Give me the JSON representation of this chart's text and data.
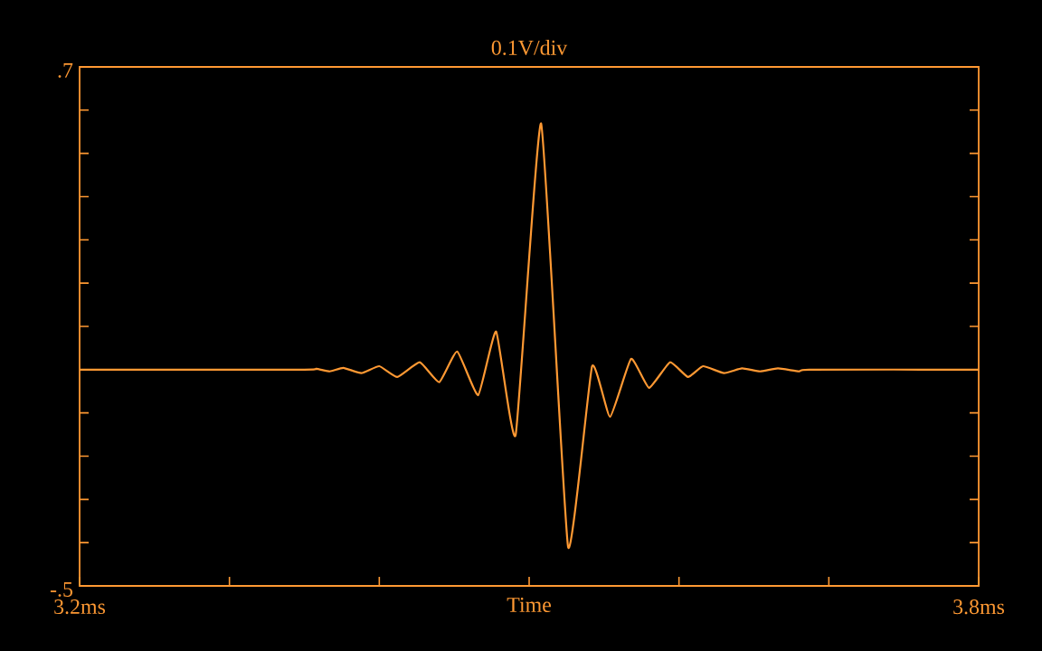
{
  "chart_data": {
    "type": "line",
    "title": "0.1V/div",
    "xlabel": "Time",
    "xlim": [
      3.2,
      3.8
    ],
    "ylim": [
      -0.5,
      0.7
    ],
    "xticks": [
      {
        "value": 3.2,
        "label": "3.2ms"
      },
      {
        "value": 3.3,
        "label": null
      },
      {
        "value": 3.4,
        "label": null
      },
      {
        "value": 3.5,
        "label": null
      },
      {
        "value": 3.6,
        "label": null
      },
      {
        "value": 3.7,
        "label": null
      },
      {
        "value": 3.8,
        "label": "3.8ms"
      }
    ],
    "yticks": [
      {
        "value": -0.5,
        "label": "-.5"
      },
      {
        "value": -0.4,
        "label": null
      },
      {
        "value": -0.3,
        "label": null
      },
      {
        "value": -0.2,
        "label": null
      },
      {
        "value": -0.1,
        "label": null
      },
      {
        "value": 0,
        "label": null
      },
      {
        "value": 0.1,
        "label": null
      },
      {
        "value": 0.2,
        "label": null
      },
      {
        "value": 0.3,
        "label": null
      },
      {
        "value": 0.4,
        "label": null
      },
      {
        "value": 0.5,
        "label": null
      },
      {
        "value": 0.6,
        "label": null
      },
      {
        "value": 0.7,
        "label": ".7"
      }
    ],
    "x": [
      3.2,
      3.35,
      3.358,
      3.367,
      3.376,
      3.388,
      3.4,
      3.412,
      3.427,
      3.44,
      3.452,
      3.466,
      3.478,
      3.491,
      3.508,
      3.526,
      3.542,
      3.554,
      3.568,
      3.58,
      3.594,
      3.606,
      3.616,
      3.63,
      3.642,
      3.654,
      3.666,
      3.68,
      3.687,
      3.8
    ],
    "series": [
      {
        "color": "#ff9933",
        "values": [
          0,
          0,
          0.002,
          -0.004,
          0.004,
          -0.008,
          0.008,
          -0.017,
          0.017,
          -0.029,
          0.042,
          -0.059,
          0.088,
          -0.151,
          0.569,
          -0.41,
          0.008,
          -0.109,
          0.025,
          -0.042,
          0.017,
          -0.017,
          0.008,
          -0.008,
          0.003,
          -0.004,
          0.003,
          -0.004,
          0,
          0
        ]
      }
    ]
  }
}
